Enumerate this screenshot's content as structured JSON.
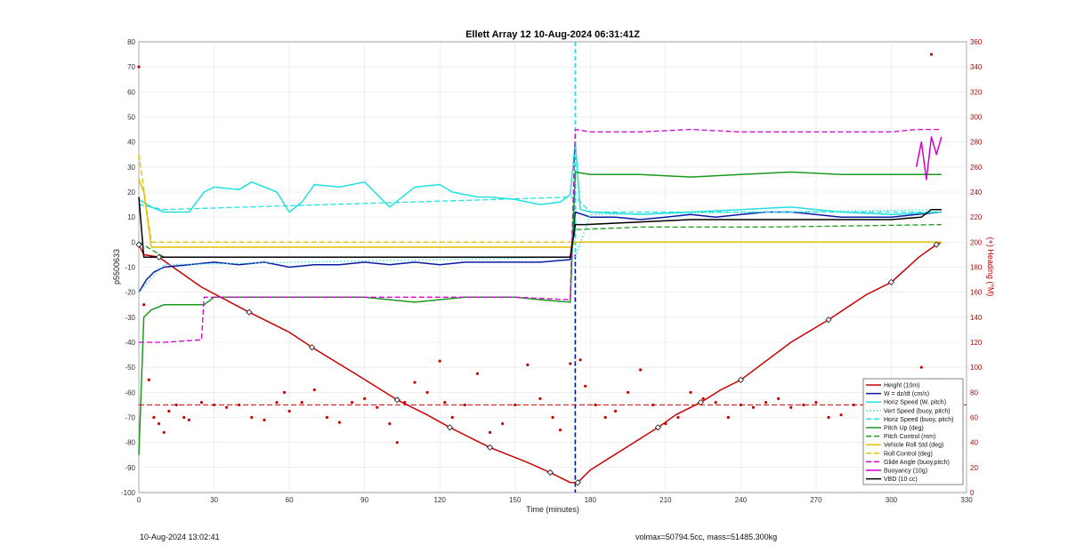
{
  "footer": {
    "timestamp": "10-Aug-2024 13:02:41",
    "info": "volmax=50794.5cc, mass=51485.300kg"
  },
  "colors": {
    "height": "#cc0000",
    "w": "#0a1aa6",
    "horiz": "#22e0e0",
    "pitch": "#1a9a1a",
    "roll": "#e0c000",
    "glide": "#d000d0",
    "buoy": "#d000d0",
    "vbd": "#000000",
    "heading": "#cc0000"
  },
  "chart_data": {
    "type": "line",
    "title": "Ellett Array 12 10-Aug-2024 06:31:41Z",
    "xlabel": "Time (minutes)",
    "ylabel": "p5500633",
    "y2label": "(+) Heading (°M)",
    "xlim": [
      0,
      330
    ],
    "ylim": [
      -100,
      80
    ],
    "y2lim": [
      0,
      360
    ],
    "xticks": [
      0,
      30,
      60,
      90,
      120,
      150,
      180,
      210,
      240,
      270,
      300,
      330
    ],
    "yticks": [
      80,
      70,
      60,
      50,
      40,
      30,
      20,
      10,
      0,
      -10,
      -20,
      -30,
      -40,
      -50,
      -60,
      -70,
      -80,
      -90,
      -100
    ],
    "y2ticks": [
      360,
      340,
      320,
      300,
      280,
      260,
      240,
      220,
      200,
      180,
      160,
      140,
      120,
      100,
      80,
      60,
      40,
      20,
      0
    ],
    "grid": true,
    "legend_position": "bottom-right",
    "vlines": [
      {
        "x": 174,
        "color": "#22e0e0",
        "style": "dashed",
        "range": [
          -100,
          80
        ]
      },
      {
        "x": 174,
        "color": "#0a1aa6",
        "style": "dashed",
        "range": [
          -100,
          -5
        ]
      }
    ],
    "series": [
      {
        "name": "Height (10m)",
        "color": "#cc0000",
        "style": "solid",
        "x": [
          0,
          2,
          8,
          25,
          44,
          60,
          69,
          87,
          103,
          115,
          124,
          134,
          140,
          155,
          164,
          172,
          175,
          180,
          207,
          214,
          224,
          232,
          240,
          260,
          275,
          290,
          300,
          311,
          318,
          320
        ],
        "y": [
          -1,
          -5,
          -6,
          -18,
          -28,
          -36,
          -42,
          -53,
          -63,
          -69,
          -74,
          -79,
          -82,
          -88,
          -92,
          -96,
          -96,
          -91,
          -74,
          -69,
          -64,
          -59,
          -55,
          -40,
          -31,
          -21,
          -16,
          -6,
          -1,
          0
        ]
      },
      {
        "name": "W = dz/dt (cm/s)",
        "color": "#0a1aa6",
        "style": "solid",
        "x": [
          0,
          3,
          6,
          10,
          20,
          30,
          40,
          50,
          60,
          70,
          80,
          90,
          100,
          110,
          120,
          130,
          140,
          150,
          160,
          172,
          174,
          180,
          190,
          200,
          210,
          220,
          230,
          240,
          250,
          260,
          270,
          280,
          290,
          300,
          310,
          320
        ],
        "y": [
          -20,
          -15,
          -12,
          -10,
          -9,
          -8,
          -9,
          -8,
          -10,
          -9,
          -9,
          -8,
          -9,
          -8,
          -9,
          -8,
          -8,
          -8,
          -8,
          -7,
          12,
          10,
          10,
          9,
          10,
          11,
          10,
          11,
          12,
          12,
          11,
          10,
          10,
          10,
          11,
          12
        ]
      },
      {
        "name": "Horiz Speed (W, pitch)",
        "color": "#22e0e0",
        "style": "solid",
        "x": [
          0,
          5,
          10,
          20,
          26,
          30,
          40,
          45,
          55,
          60,
          65,
          70,
          80,
          90,
          100,
          110,
          120,
          125,
          135,
          140,
          150,
          160,
          168,
          172,
          174,
          176,
          180,
          200,
          220,
          240,
          260,
          280,
          300,
          320
        ],
        "y": [
          17,
          14,
          12,
          12,
          20,
          22,
          21,
          24,
          20,
          12,
          16,
          23,
          22,
          24,
          14,
          22,
          23,
          20,
          18,
          18,
          17,
          15,
          16,
          19,
          40,
          13,
          12,
          11,
          12,
          13,
          14,
          12,
          11,
          12
        ]
      },
      {
        "name": "Vert Speed (buoy, pitch)",
        "color": "#22e0e0",
        "style": "dotted",
        "x": [
          0,
          10,
          174,
          180,
          320
        ],
        "y": [
          -20,
          -9,
          -6,
          11,
          13
        ]
      },
      {
        "name": "Horiz Speed (buoy, pitch)",
        "color": "#22e0e0",
        "style": "dashed",
        "x": [
          0,
          10,
          174,
          180,
          320
        ],
        "y": [
          15,
          13,
          18,
          12,
          12
        ]
      },
      {
        "name": "Pitch Up (deg)",
        "color": "#1a9a1a",
        "style": "solid",
        "x": [
          0,
          2,
          5,
          10,
          26,
          30,
          60,
          70,
          90,
          110,
          130,
          150,
          160,
          172,
          174,
          180,
          200,
          220,
          240,
          260,
          280,
          300,
          320
        ],
        "y": [
          -85,
          -30,
          -27,
          -25,
          -25,
          -22,
          -22,
          -22,
          -22,
          -24,
          -22,
          -22,
          -23,
          -24,
          28,
          27,
          27,
          26,
          27,
          28,
          27,
          27,
          27
        ]
      },
      {
        "name": "Pitch Control (mm)",
        "color": "#1a9a1a",
        "style": "dashed",
        "x": [
          0,
          10,
          172,
          174,
          200,
          250,
          320
        ],
        "y": [
          0,
          -6,
          -6,
          5,
          6,
          6,
          7
        ]
      },
      {
        "name": "Vehicle Roll Std (deg)",
        "color": "#e0c000",
        "style": "solid",
        "x": [
          0,
          2,
          5,
          10,
          30,
          50,
          70,
          90,
          110,
          130,
          150,
          172,
          174,
          200,
          230,
          260,
          290,
          320
        ],
        "y": [
          25,
          20,
          -2,
          -2,
          -2,
          -2,
          -2,
          -2,
          -2,
          -2,
          -2,
          -2,
          0,
          0,
          0,
          0,
          0,
          0
        ]
      },
      {
        "name": "Roll Control (deg)",
        "color": "#e0c000",
        "style": "dashed",
        "x": [
          0,
          5,
          10,
          172,
          174,
          320
        ],
        "y": [
          35,
          0,
          0,
          0,
          0,
          0
        ]
      },
      {
        "name": "Glide Angle (buoy,pitch)",
        "color": "#d000d0",
        "style": "dashed",
        "x": [
          0,
          5,
          10,
          25,
          26,
          40,
          60,
          80,
          100,
          130,
          150,
          172,
          174,
          180,
          200,
          220,
          240,
          260,
          280,
          300,
          310,
          320
        ],
        "y": [
          -40,
          -40,
          -40,
          -39,
          -22,
          -22,
          -22,
          -22,
          -22,
          -22,
          -22,
          -23,
          45,
          44,
          44,
          45,
          44,
          44,
          44,
          44,
          45,
          45
        ]
      },
      {
        "name": "Buoyancy (10g)",
        "color": "#d000d0",
        "style": "solid",
        "x": [
          310,
          312,
          314,
          316,
          318,
          320
        ],
        "y": [
          30,
          40,
          25,
          42,
          35,
          42
        ]
      },
      {
        "name": "VBD (10 cc)",
        "color": "#000000",
        "style": "solid",
        "x": [
          0,
          2,
          10,
          172,
          174,
          178,
          220,
          300,
          312,
          316,
          320
        ],
        "y": [
          18,
          -6,
          -6,
          -6,
          7,
          7,
          9,
          9,
          10,
          13,
          13
        ]
      }
    ],
    "heading": {
      "name": "Heading (°M)",
      "color": "#cc0000",
      "axis": "right",
      "style": "dots",
      "mean": 70,
      "x": [
        0,
        2,
        4,
        6,
        8,
        10,
        12,
        15,
        18,
        20,
        25,
        30,
        35,
        40,
        45,
        50,
        55,
        58,
        60,
        65,
        70,
        75,
        80,
        85,
        90,
        95,
        100,
        103,
        106,
        110,
        115,
        120,
        122,
        125,
        130,
        135,
        140,
        145,
        150,
        155,
        160,
        165,
        168,
        172,
        176,
        178,
        182,
        186,
        190,
        195,
        200,
        205,
        210,
        215,
        220,
        225,
        230,
        235,
        240,
        245,
        250,
        255,
        260,
        265,
        270,
        275,
        280,
        285,
        290,
        295,
        300,
        305,
        310,
        312,
        314,
        316,
        318,
        320
      ],
      "y": [
        340,
        150,
        90,
        60,
        55,
        48,
        65,
        70,
        60,
        58,
        72,
        70,
        68,
        70,
        60,
        58,
        72,
        80,
        65,
        72,
        82,
        60,
        56,
        72,
        75,
        68,
        55,
        40,
        72,
        88,
        80,
        105,
        72,
        60,
        70,
        95,
        48,
        55,
        70,
        102,
        75,
        60,
        50,
        103,
        106,
        85,
        70,
        60,
        65,
        80,
        98,
        70,
        55,
        60,
        80,
        75,
        72,
        60,
        70,
        68,
        72,
        75,
        68,
        70,
        72,
        60,
        62,
        70,
        75,
        68,
        62,
        80,
        48,
        100,
        55,
        350,
        90,
        70
      ]
    }
  }
}
